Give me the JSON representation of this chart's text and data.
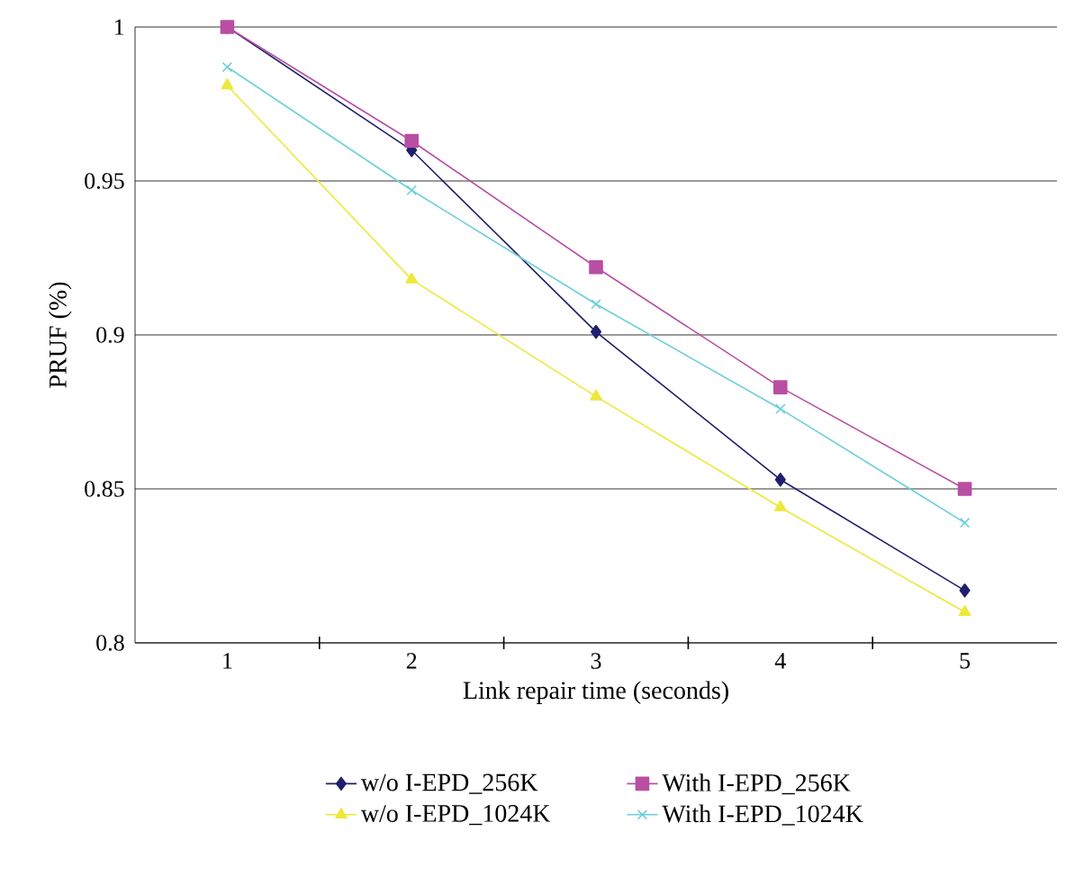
{
  "chart_data": {
    "type": "line",
    "xlabel": "Link repair time (seconds)",
    "ylabel": "PRUF (%)",
    "categories": [
      "1",
      "2",
      "3",
      "4",
      "5"
    ],
    "series": [
      {
        "name": "w/o I-EPD_256K",
        "color": "#1f1f6e",
        "marker": "diamond",
        "values": [
          1.0,
          0.96,
          0.901,
          0.853,
          0.817
        ]
      },
      {
        "name": "With I-EPD_256K",
        "color": "#b84fa3",
        "marker": "square",
        "values": [
          1.0,
          0.963,
          0.922,
          0.883,
          0.85
        ]
      },
      {
        "name": "w/o I-EPD_1024K",
        "color": "#eee83a",
        "marker": "triangle",
        "values": [
          0.981,
          0.918,
          0.88,
          0.844,
          0.81
        ]
      },
      {
        "name": "With I-EPD_1024K",
        "color": "#6bcfdb",
        "marker": "cross",
        "values": [
          0.987,
          0.947,
          0.91,
          0.876,
          0.839
        ]
      }
    ],
    "ylim": [
      0.8,
      1
    ],
    "yticks": [
      0.8,
      0.85,
      0.9,
      0.95,
      1
    ],
    "grid": "y",
    "legend": "bottom"
  }
}
